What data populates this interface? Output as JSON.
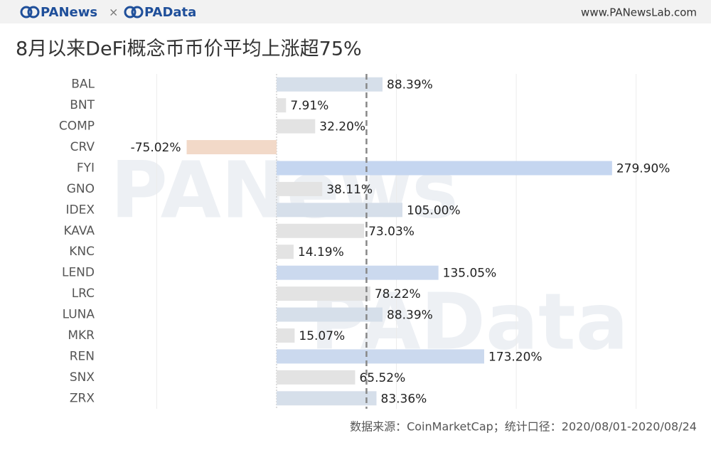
{
  "chart_data": {
    "type": "hbar",
    "brand": [
      "PANews",
      "×",
      "PAData"
    ],
    "website": "www.PANewsLab.com",
    "title": "8月以来DeFi概念币币价平均上涨超75%",
    "watermarks": [
      "PANews",
      "PAData"
    ],
    "source": "数据来源：CoinMarketCap；统计口径：2020/08/01-2020/08/24",
    "categories": [
      "BAL",
      "BNT",
      "COMP",
      "CRV",
      "FYI",
      "GNO",
      "IDEX",
      "KAVA",
      "KNC",
      "LEND",
      "LRC",
      "LUNA",
      "MKR",
      "REN",
      "SNX",
      "ZRX"
    ],
    "values": [
      88.39,
      7.91,
      32.2,
      -75.02,
      279.9,
      38.11,
      105.0,
      73.03,
      14.19,
      135.05,
      78.22,
      88.39,
      15.07,
      173.2,
      65.52,
      83.36
    ],
    "value_labels": [
      "88.39%",
      "7.91%",
      "32.20%",
      "-75.02%",
      "279.90%",
      "38.11%",
      "105.00%",
      "73.03%",
      "14.19%",
      "135.05%",
      "78.22%",
      "88.39%",
      "15.07%",
      "173.20%",
      "65.52%",
      "83.36%"
    ],
    "colors": [
      "#d6dfea",
      "#e3e3e3",
      "#e3e3e3",
      "#f2d9c8",
      "#c5d6f0",
      "#e3e3e3",
      "#d6dfea",
      "#e3e3e3",
      "#e3e3e3",
      "#cbd9ee",
      "#e3e3e3",
      "#d6dfea",
      "#e3e3e3",
      "#cbd9ee",
      "#e3e3e3",
      "#d6dfea"
    ],
    "xlim": [
      -140,
      350
    ],
    "xgrid": [
      -100,
      0,
      100,
      200,
      300
    ],
    "average_line": 75
  }
}
